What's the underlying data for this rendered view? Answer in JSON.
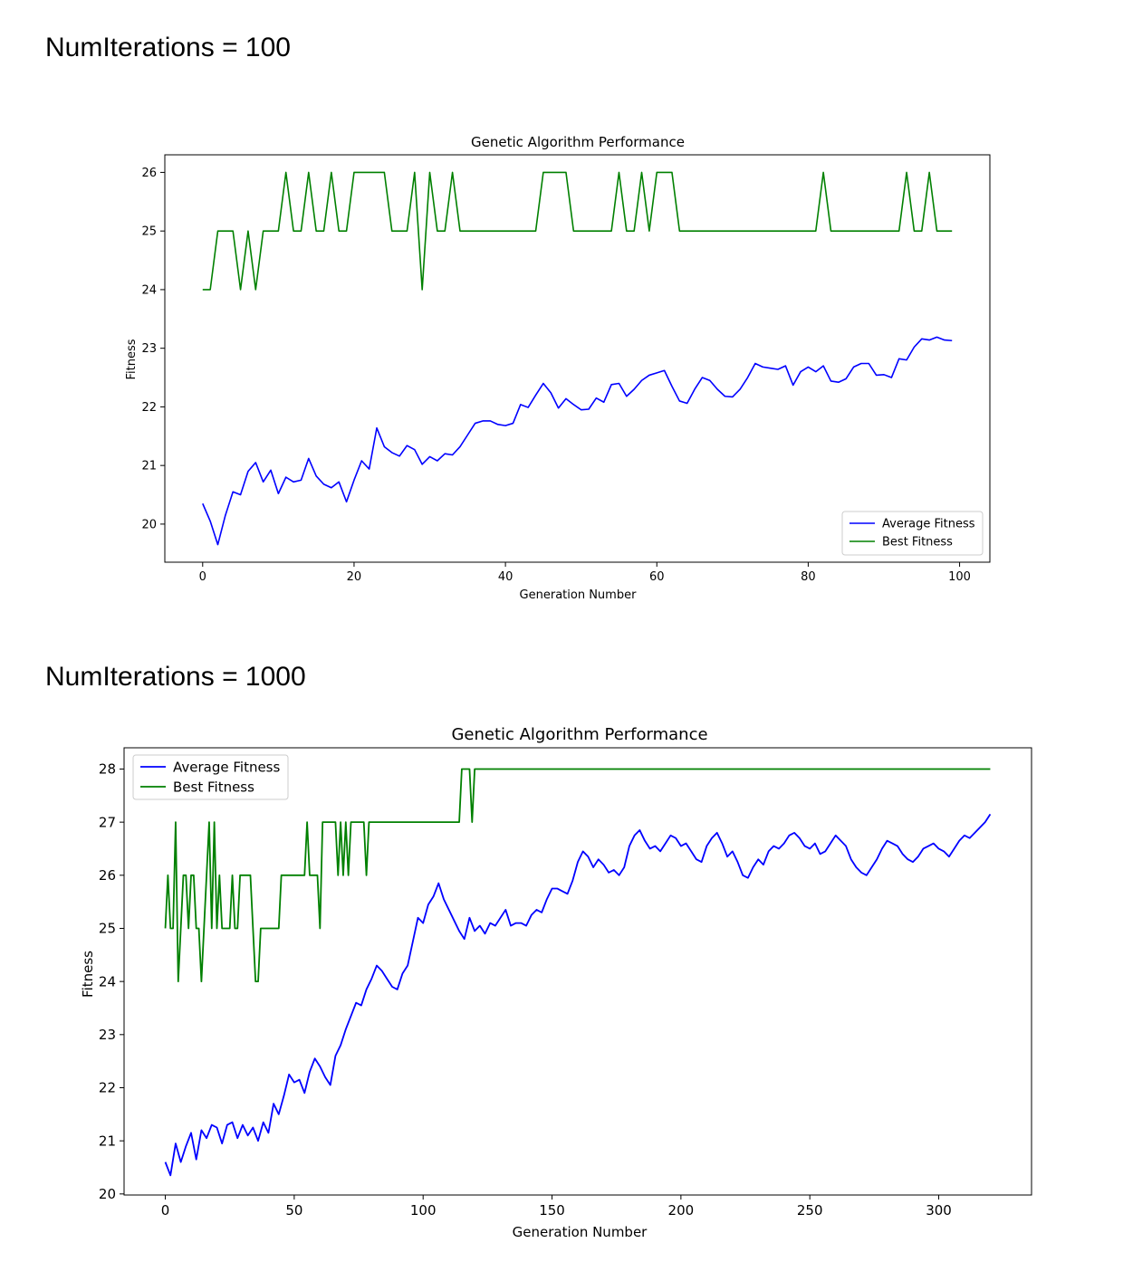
{
  "page": {
    "heading1": "NumIterations = 100",
    "heading2": "NumIterations = 1000"
  },
  "colors": {
    "average": "#0000ff",
    "best": "#008000",
    "axis": "#000000"
  },
  "chart_data": [
    {
      "type": "line",
      "title": "Genetic Algorithm Performance",
      "xlabel": "Generation Number",
      "ylabel": "Fitness",
      "xlim": [
        -5,
        104
      ],
      "ylim": [
        19.35,
        26.3
      ],
      "xticks": [
        0,
        20,
        40,
        60,
        80,
        100
      ],
      "yticks": [
        20,
        21,
        22,
        23,
        24,
        25,
        26
      ],
      "grid": false,
      "legend_position": "bottom-right",
      "series": [
        {
          "name": "Average Fitness",
          "color": "#0000ff",
          "x": [
            0,
            1,
            2,
            3,
            4,
            5,
            6,
            7,
            8,
            9,
            10,
            11,
            12,
            13,
            14,
            15,
            16,
            17,
            18,
            19,
            20,
            21,
            22,
            23,
            24,
            25,
            26,
            27,
            28,
            29,
            30,
            31,
            32,
            33,
            34,
            35,
            36,
            37,
            38,
            39,
            40,
            41,
            42,
            43,
            44,
            45,
            46,
            47,
            48,
            49,
            50,
            51,
            52,
            53,
            54,
            55,
            56,
            57,
            58,
            59,
            60,
            61,
            62,
            63,
            64,
            65,
            66,
            67,
            68,
            69,
            70,
            71,
            72,
            73,
            74,
            75,
            76,
            77,
            78,
            79,
            80,
            81,
            82,
            83,
            84,
            85,
            86,
            87,
            88,
            89,
            90,
            91,
            92,
            93,
            94,
            95,
            96,
            97,
            98,
            99
          ],
          "values": [
            20.35,
            20.05,
            19.65,
            20.15,
            20.55,
            20.5,
            20.9,
            21.05,
            20.72,
            20.92,
            20.52,
            20.8,
            20.72,
            20.75,
            21.12,
            20.82,
            20.68,
            20.62,
            20.72,
            20.38,
            20.75,
            21.08,
            20.94,
            21.64,
            21.32,
            21.22,
            21.16,
            21.34,
            21.27,
            21.02,
            21.15,
            21.08,
            21.2,
            21.18,
            21.32,
            21.52,
            21.72,
            21.76,
            21.76,
            21.7,
            21.68,
            21.72,
            22.04,
            21.99,
            22.2,
            22.4,
            22.24,
            21.98,
            22.14,
            22.04,
            21.95,
            21.96,
            22.15,
            22.08,
            22.38,
            22.4,
            22.18,
            22.3,
            22.45,
            22.54,
            22.58,
            22.62,
            22.35,
            22.1,
            22.06,
            22.3,
            22.5,
            22.45,
            22.3,
            22.18,
            22.17,
            22.3,
            22.5,
            22.74,
            22.68,
            22.66,
            22.64,
            22.7,
            22.37,
            22.6,
            22.68,
            22.6,
            22.7,
            22.44,
            22.42,
            22.48,
            22.68,
            22.74,
            22.74,
            22.54,
            22.55,
            22.5,
            22.82,
            22.8,
            23.02,
            23.16,
            23.14,
            23.19,
            23.14,
            23.13
          ]
        },
        {
          "name": "Best Fitness",
          "color": "#008000",
          "x": [
            0,
            1,
            2,
            3,
            4,
            5,
            6,
            7,
            8,
            9,
            10,
            11,
            12,
            13,
            14,
            15,
            16,
            17,
            18,
            19,
            20,
            21,
            22,
            23,
            24,
            25,
            26,
            27,
            28,
            29,
            30,
            31,
            32,
            33,
            34,
            35,
            36,
            37,
            38,
            39,
            40,
            41,
            42,
            43,
            44,
            45,
            46,
            47,
            48,
            49,
            50,
            51,
            52,
            53,
            54,
            55,
            56,
            57,
            58,
            59,
            60,
            61,
            62,
            63,
            64,
            65,
            66,
            67,
            68,
            69,
            70,
            71,
            72,
            73,
            74,
            75,
            76,
            77,
            78,
            79,
            80,
            81,
            82,
            83,
            84,
            85,
            86,
            87,
            88,
            89,
            90,
            91,
            92,
            93,
            94,
            95,
            96,
            97,
            98,
            99
          ],
          "values": [
            24,
            24,
            25,
            25,
            25,
            24,
            25,
            24,
            25,
            25,
            25,
            26,
            25,
            25,
            26,
            25,
            25,
            26,
            25,
            25,
            26,
            26,
            26,
            26,
            26,
            25,
            25,
            25,
            26,
            24,
            26,
            25,
            25,
            26,
            25,
            25,
            25,
            25,
            25,
            25,
            25,
            25,
            25,
            25,
            25,
            26,
            26,
            26,
            26,
            25,
            25,
            25,
            25,
            25,
            25,
            26,
            25,
            25,
            26,
            25,
            26,
            26,
            26,
            25,
            25,
            25,
            25,
            25,
            25,
            25,
            25,
            25,
            25,
            25,
            25,
            25,
            25,
            25,
            25,
            25,
            25,
            25,
            26,
            25,
            25,
            25,
            25,
            25,
            25,
            25,
            25,
            25,
            25,
            26,
            25,
            25,
            26,
            25,
            25,
            25
          ]
        }
      ]
    },
    {
      "type": "line",
      "title": "Genetic Algorithm Performance",
      "xlabel": "Generation Number",
      "ylabel": "Fitness",
      "xlim": [
        -16,
        336
      ],
      "ylim": [
        19.98,
        28.4
      ],
      "xticks": [
        0,
        50,
        100,
        150,
        200,
        250,
        300
      ],
      "yticks": [
        20,
        21,
        22,
        23,
        24,
        25,
        26,
        27,
        28
      ],
      "grid": false,
      "legend_position": "top-left",
      "series": [
        {
          "name": "Average Fitness",
          "color": "#0000ff",
          "x": [
            0,
            2,
            4,
            6,
            8,
            10,
            12,
            14,
            16,
            18,
            20,
            22,
            24,
            26,
            28,
            30,
            32,
            34,
            36,
            38,
            40,
            42,
            44,
            46,
            48,
            50,
            52,
            54,
            56,
            58,
            60,
            62,
            64,
            66,
            68,
            70,
            72,
            74,
            76,
            78,
            80,
            82,
            84,
            86,
            88,
            90,
            92,
            94,
            96,
            98,
            100,
            102,
            104,
            106,
            108,
            110,
            112,
            114,
            116,
            118,
            120,
            122,
            124,
            126,
            128,
            130,
            132,
            134,
            136,
            138,
            140,
            142,
            144,
            146,
            148,
            150,
            152,
            154,
            156,
            158,
            160,
            162,
            164,
            166,
            168,
            170,
            172,
            174,
            176,
            178,
            180,
            182,
            184,
            186,
            188,
            190,
            192,
            194,
            196,
            198,
            200,
            202,
            204,
            206,
            208,
            210,
            212,
            214,
            216,
            218,
            220,
            222,
            224,
            226,
            228,
            230,
            232,
            234,
            236,
            238,
            240,
            242,
            244,
            246,
            248,
            250,
            252,
            254,
            256,
            258,
            260,
            262,
            264,
            266,
            268,
            270,
            272,
            274,
            276,
            278,
            280,
            282,
            284,
            286,
            288,
            290,
            292,
            294,
            296,
            298,
            300,
            302,
            304,
            306,
            308,
            310,
            312,
            314,
            316,
            318,
            320
          ],
          "values": [
            20.6,
            20.35,
            20.95,
            20.6,
            20.9,
            21.15,
            20.65,
            21.2,
            21.05,
            21.3,
            21.25,
            20.95,
            21.3,
            21.35,
            21.05,
            21.3,
            21.1,
            21.25,
            21.0,
            21.35,
            21.15,
            21.7,
            21.5,
            21.85,
            22.25,
            22.1,
            22.15,
            21.9,
            22.3,
            22.55,
            22.4,
            22.2,
            22.05,
            22.6,
            22.8,
            23.1,
            23.35,
            23.6,
            23.55,
            23.85,
            24.05,
            24.3,
            24.2,
            24.05,
            23.9,
            23.85,
            24.15,
            24.3,
            24.75,
            25.2,
            25.1,
            25.45,
            25.6,
            25.85,
            25.55,
            25.35,
            25.15,
            24.95,
            24.8,
            25.2,
            24.95,
            25.05,
            24.9,
            25.1,
            25.05,
            25.2,
            25.35,
            25.05,
            25.1,
            25.1,
            25.05,
            25.25,
            25.35,
            25.3,
            25.55,
            25.75,
            25.75,
            25.7,
            25.65,
            25.9,
            26.25,
            26.45,
            26.35,
            26.15,
            26.3,
            26.2,
            26.05,
            26.1,
            26.0,
            26.15,
            26.55,
            26.75,
            26.85,
            26.65,
            26.5,
            26.55,
            26.45,
            26.6,
            26.75,
            26.7,
            26.55,
            26.6,
            26.45,
            26.3,
            26.25,
            26.55,
            26.7,
            26.8,
            26.6,
            26.35,
            26.45,
            26.25,
            26.0,
            25.95,
            26.15,
            26.3,
            26.2,
            26.45,
            26.55,
            26.5,
            26.6,
            26.75,
            26.8,
            26.7,
            26.55,
            26.5,
            26.6,
            26.4,
            26.45,
            26.6,
            26.75,
            26.65,
            26.55,
            26.3,
            26.15,
            26.05,
            26.0,
            26.15,
            26.3,
            26.5,
            26.65,
            26.6,
            26.55,
            26.4,
            26.3,
            26.25,
            26.35,
            26.5,
            26.55,
            26.6,
            26.5,
            26.45,
            26.35,
            26.5,
            26.65,
            26.75,
            26.7,
            26.8,
            26.9,
            27.0,
            27.15
          ]
        },
        {
          "name": "Best Fitness",
          "color": "#008000",
          "x": [
            0,
            1,
            2,
            3,
            4,
            5,
            6,
            7,
            8,
            9,
            10,
            11,
            12,
            13,
            14,
            15,
            16,
            17,
            18,
            19,
            20,
            21,
            22,
            23,
            24,
            25,
            26,
            27,
            28,
            29,
            30,
            31,
            32,
            33,
            34,
            35,
            36,
            37,
            38,
            39,
            40,
            41,
            42,
            43,
            44,
            45,
            46,
            47,
            48,
            49,
            50,
            51,
            52,
            53,
            54,
            55,
            56,
            57,
            58,
            59,
            60,
            61,
            62,
            63,
            64,
            65,
            66,
            67,
            68,
            69,
            70,
            71,
            72,
            73,
            74,
            75,
            76,
            77,
            78,
            79,
            80,
            81,
            82,
            83,
            84,
            85,
            86,
            87,
            88,
            89,
            90,
            91,
            92,
            93,
            94,
            95,
            96,
            97,
            98,
            99,
            100,
            101,
            102,
            103,
            104,
            105,
            106,
            107,
            108,
            109,
            110,
            111,
            112,
            113,
            114,
            115,
            116,
            117,
            118,
            119,
            120,
            320
          ],
          "values": [
            25,
            26,
            25,
            25,
            27,
            24,
            25,
            26,
            26,
            25,
            26,
            26,
            25,
            25,
            24,
            25,
            26,
            27,
            25,
            27,
            25,
            26,
            25,
            25,
            25,
            25,
            26,
            25,
            25,
            26,
            26,
            26,
            26,
            26,
            25,
            24,
            24,
            25,
            25,
            25,
            25,
            25,
            25,
            25,
            25,
            26,
            26,
            26,
            26,
            26,
            26,
            26,
            26,
            26,
            26,
            27,
            26,
            26,
            26,
            26,
            25,
            27,
            27,
            27,
            27,
            27,
            27,
            26,
            27,
            26,
            27,
            26,
            27,
            27,
            27,
            27,
            27,
            27,
            26,
            27,
            27,
            27,
            27,
            27,
            27,
            27,
            27,
            27,
            27,
            27,
            27,
            27,
            27,
            27,
            27,
            27,
            27,
            27,
            27,
            27,
            27,
            27,
            27,
            27,
            27,
            27,
            27,
            27,
            27,
            27,
            27,
            27,
            27,
            27,
            27,
            28,
            28,
            28,
            28,
            27,
            28,
            28
          ]
        }
      ]
    }
  ]
}
